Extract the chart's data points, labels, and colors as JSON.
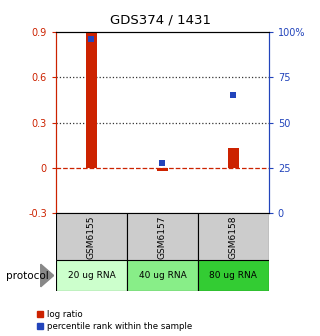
{
  "title": "GDS374 / 1431",
  "samples": [
    "GSM6155",
    "GSM6157",
    "GSM6158"
  ],
  "protocol_labels": [
    "20 ug RNA",
    "40 ug RNA",
    "80 ug RNA"
  ],
  "protocol_colors": [
    "#ccffcc",
    "#88ee88",
    "#33cc33"
  ],
  "log_ratio": [
    0.9,
    -0.02,
    0.13
  ],
  "percentile_rank": [
    0.96,
    0.275,
    0.65
  ],
  "left_yticks": [
    0.9,
    0.6,
    0.3,
    0.0,
    -0.3
  ],
  "left_ylabels": [
    "0.9",
    "0.6",
    "0.3",
    "0",
    "-0.3"
  ],
  "right_yticks": [
    1.0,
    0.75,
    0.5,
    0.25,
    0.0
  ],
  "right_ylabels": [
    "100%",
    "75",
    "50",
    "25",
    "0"
  ],
  "ymin": -0.3,
  "ymax": 0.9,
  "bar_color": "#cc2200",
  "scatter_color": "#2244bb",
  "hline_color": "#cc2200",
  "dotted_color": "#333333",
  "background_color": "#ffffff",
  "sample_bg": "#cccccc",
  "protocol_label": "protocol",
  "legend_log_ratio_color": "#cc2200",
  "legend_percentile_color": "#2244bb"
}
